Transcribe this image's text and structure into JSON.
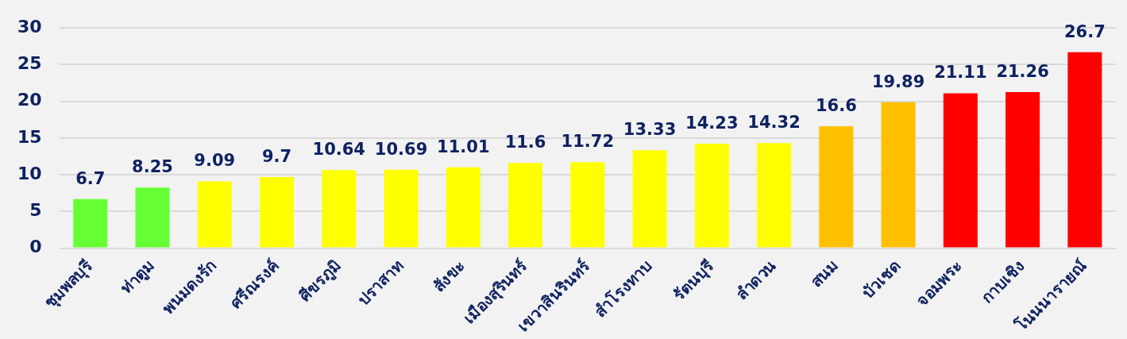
{
  "chart_data": {
    "type": "bar",
    "categories": [
      "ชุมพลบุรี",
      "ท่าตูม",
      "พนมดงรัก",
      "ศรีณรงค์",
      "ศีขรภูมิ",
      "ปราสาท",
      "สังขะ",
      "เมืองสุรินทร์",
      "เขวาสินรินทร์",
      "สำโรงทาบ",
      "รัตนบุรี",
      "ลำดวน",
      "สนม",
      "บัวเชด",
      "จอมพระ",
      "กาบเชิง",
      "โนนนารายณ์"
    ],
    "values": [
      6.7,
      8.25,
      9.09,
      9.7,
      10.64,
      10.69,
      11.01,
      11.6,
      11.72,
      13.33,
      14.23,
      14.32,
      16.6,
      19.89,
      21.11,
      21.26,
      26.7
    ],
    "colors": [
      "#66ff33",
      "#66ff33",
      "#ffff00",
      "#ffff00",
      "#ffff00",
      "#ffff00",
      "#ffff00",
      "#ffff00",
      "#ffff00",
      "#ffff00",
      "#ffff00",
      "#ffff00",
      "#ffc000",
      "#ffc000",
      "#ff0000",
      "#ff0000",
      "#ff0000"
    ],
    "ylim": [
      0,
      30
    ],
    "yticks": [
      0,
      5,
      10,
      15,
      20,
      25,
      30
    ],
    "grid": "y",
    "legend": false,
    "data_labels": true
  }
}
